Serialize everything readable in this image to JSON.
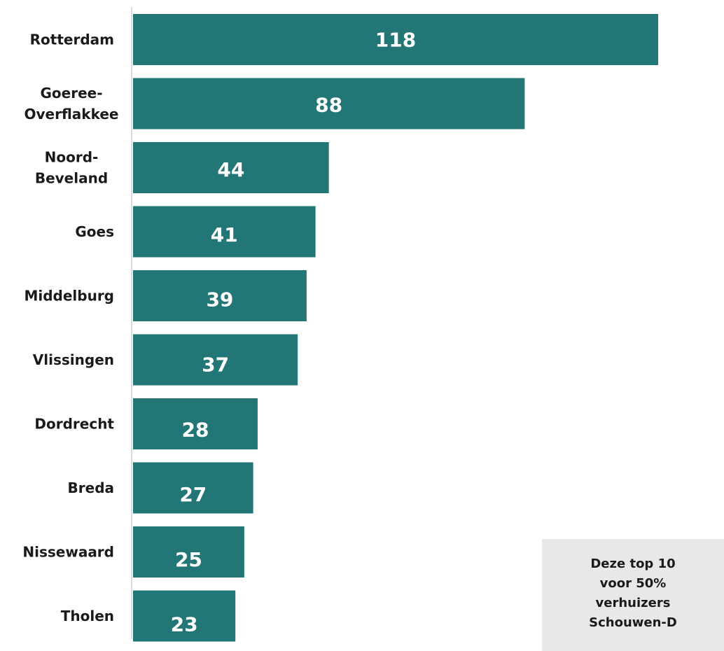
{
  "chart_data": {
    "type": "bar",
    "orientation": "horizontal",
    "categories": [
      "Rotterdam",
      "Goeree-Overflakkee",
      "Noord-Beveland",
      "Goes",
      "Middelburg",
      "Vlissingen",
      "Dordrecht",
      "Breda",
      "Nissewaard",
      "Tholen"
    ],
    "category_lines": [
      [
        "Rotterdam"
      ],
      [
        "Goeree-",
        "Overflakkee"
      ],
      [
        "Noord-",
        "Beveland"
      ],
      [
        "Goes"
      ],
      [
        "Middelburg"
      ],
      [
        "Vlissingen"
      ],
      [
        "Dordrecht"
      ],
      [
        "Breda"
      ],
      [
        "Nissewaard"
      ],
      [
        "Tholen"
      ]
    ],
    "values": [
      118,
      88,
      44,
      41,
      39,
      37,
      28,
      27,
      25,
      23
    ],
    "bar_color": "#237676",
    "axis_color": "#d0d0d0",
    "xlim": [
      0,
      118
    ],
    "title": "",
    "xlabel": "",
    "ylabel": "",
    "legend": "none",
    "grid": false
  },
  "callout": {
    "text": "Deze top 10\nvoor 50%\nverhuizers\nSchouwen-D",
    "background": "#e8e8e8"
  }
}
